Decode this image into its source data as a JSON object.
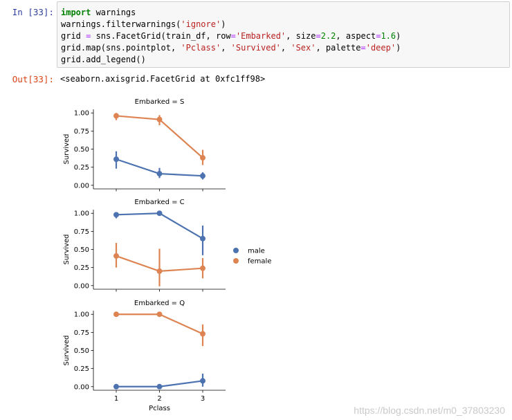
{
  "cell": {
    "in_prompt": "In  [33]:",
    "out_prompt": "Out[33]:",
    "output_text": "<seaborn.axisgrid.FacetGrid at 0xfc1ff98>"
  },
  "code_lines": [
    [
      {
        "t": "import",
        "c": "kw"
      },
      {
        "t": " warnings",
        "c": ""
      }
    ],
    [
      {
        "t": "warnings.filterwarnings(",
        "c": ""
      },
      {
        "t": "'ignore'",
        "c": "str"
      },
      {
        "t": ")",
        "c": ""
      }
    ],
    [
      {
        "t": "grid ",
        "c": ""
      },
      {
        "t": "=",
        "c": "op"
      },
      {
        "t": " sns.FacetGrid(train_df, row",
        "c": ""
      },
      {
        "t": "=",
        "c": "op"
      },
      {
        "t": "'Embarked'",
        "c": "str"
      },
      {
        "t": ", size",
        "c": ""
      },
      {
        "t": "=",
        "c": "op"
      },
      {
        "t": "2.2",
        "c": "num"
      },
      {
        "t": ", aspect",
        "c": ""
      },
      {
        "t": "=",
        "c": "op"
      },
      {
        "t": "1.6",
        "c": "num"
      },
      {
        "t": ")",
        "c": ""
      }
    ],
    [
      {
        "t": "grid.map(sns.pointplot, ",
        "c": ""
      },
      {
        "t": "'Pclass'",
        "c": "str"
      },
      {
        "t": ", ",
        "c": ""
      },
      {
        "t": "'Survived'",
        "c": "str"
      },
      {
        "t": ", ",
        "c": ""
      },
      {
        "t": "'Sex'",
        "c": "str"
      },
      {
        "t": ", palette",
        "c": ""
      },
      {
        "t": "=",
        "c": "op"
      },
      {
        "t": "'deep'",
        "c": "str"
      },
      {
        "t": ")",
        "c": ""
      }
    ],
    [
      {
        "t": "grid.add_legend()",
        "c": ""
      }
    ]
  ],
  "chart_data": [
    {
      "type": "line",
      "title": "Embarked = S",
      "xlabel": "",
      "ylabel": "Survived",
      "categories": [
        "1",
        "2",
        "3"
      ],
      "yticks": [
        "0.00",
        "0.25",
        "0.50",
        "0.75",
        "1.00"
      ],
      "ylim": [
        -0.05,
        1.05
      ],
      "series": [
        {
          "name": "male",
          "color": "#4c72b0",
          "values": [
            0.36,
            0.16,
            0.13
          ],
          "ci": [
            [
              0.23,
              0.47
            ],
            [
              0.1,
              0.24
            ],
            [
              0.08,
              0.18
            ]
          ]
        },
        {
          "name": "female",
          "color": "#dd8452",
          "values": [
            0.96,
            0.91,
            0.38
          ],
          "ci": [
            [
              0.9,
              1.0
            ],
            [
              0.83,
              0.97
            ],
            [
              0.28,
              0.49
            ]
          ]
        }
      ]
    },
    {
      "type": "line",
      "title": "Embarked = C",
      "xlabel": "",
      "ylabel": "Survived",
      "categories": [
        "1",
        "2",
        "3"
      ],
      "yticks": [
        "0.00",
        "0.25",
        "0.50",
        "0.75",
        "1.00"
      ],
      "ylim": [
        -0.05,
        1.05
      ],
      "series": [
        {
          "name": "male",
          "color": "#4c72b0",
          "values": [
            0.98,
            1.0,
            0.65
          ],
          "ci": [
            [
              0.93,
              1.0
            ],
            [
              1.0,
              1.0
            ],
            [
              0.42,
              0.83
            ]
          ]
        },
        {
          "name": "female",
          "color": "#dd8452",
          "values": [
            0.41,
            0.2,
            0.24
          ],
          "ci": [
            [
              0.25,
              0.59
            ],
            [
              -0.01,
              0.51
            ],
            [
              0.1,
              0.38
            ]
          ]
        }
      ]
    },
    {
      "type": "line",
      "title": "Embarked = Q",
      "xlabel": "Pclass",
      "ylabel": "Survived",
      "categories": [
        "1",
        "2",
        "3"
      ],
      "yticks": [
        "0.00",
        "0.25",
        "0.50",
        "0.75",
        "1.00"
      ],
      "ylim": [
        -0.05,
        1.05
      ],
      "series": [
        {
          "name": "male",
          "color": "#4c72b0",
          "values": [
            0.0,
            0.0,
            0.08
          ],
          "ci": [
            [
              0.0,
              0.0
            ],
            [
              0.0,
              0.0
            ],
            [
              0.0,
              0.18
            ]
          ]
        },
        {
          "name": "female",
          "color": "#dd8452",
          "values": [
            1.0,
            1.0,
            0.73
          ],
          "ci": [
            [
              1.0,
              1.0
            ],
            [
              1.0,
              1.0
            ],
            [
              0.56,
              0.86
            ]
          ]
        }
      ]
    }
  ],
  "legend": [
    {
      "name": "male",
      "color": "#4c72b0"
    },
    {
      "name": "female",
      "color": "#dd8452"
    }
  ],
  "watermark": "https://blog.csdn.net/m0_37803230"
}
